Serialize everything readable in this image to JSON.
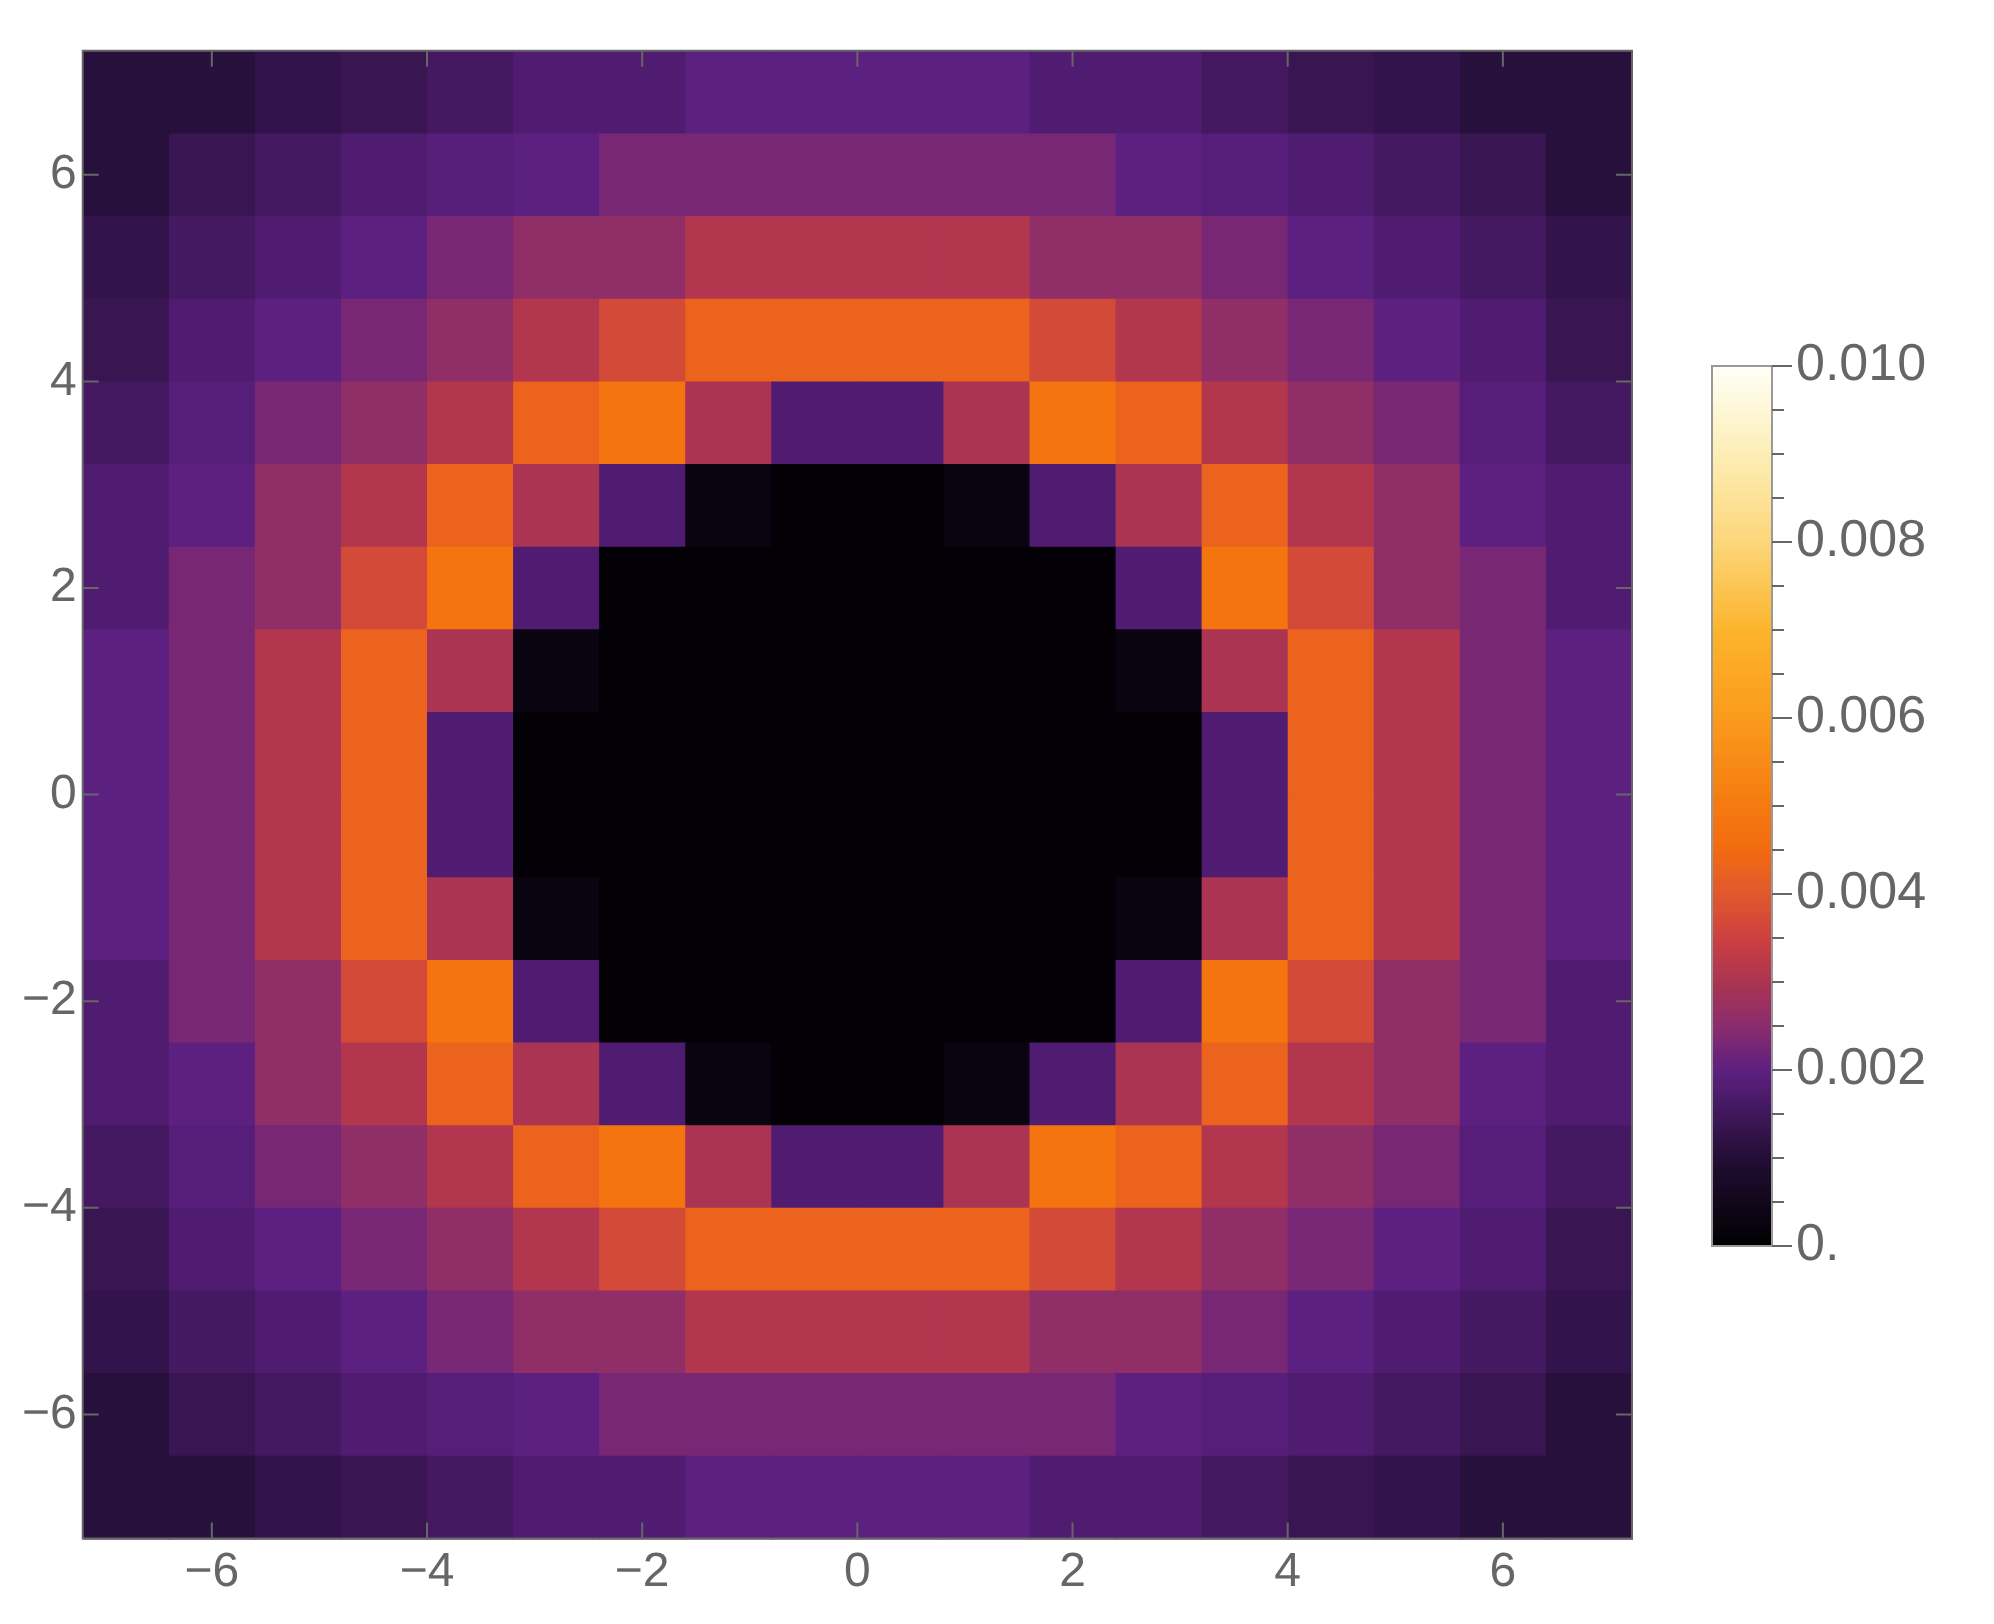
{
  "chart_data": {
    "type": "heatmap",
    "x": [
      -6.8,
      -6.0,
      -5.2,
      -4.4,
      -3.6,
      -2.8,
      -2.0,
      -1.2,
      -0.4,
      0.4,
      1.2,
      2.0,
      2.8,
      3.6,
      4.4,
      5.2,
      6.0,
      6.8
    ],
    "y": [
      6.8,
      6.0,
      5.2,
      4.4,
      3.6,
      2.8,
      2.0,
      1.2,
      0.4,
      -0.4,
      -1.2,
      -2.0,
      -2.8,
      -3.6,
      -4.4,
      -5.2,
      -6.0,
      -6.8
    ],
    "xlim": [
      -7.2,
      7.2
    ],
    "ylim": [
      -7.2,
      7.2
    ],
    "xticks": [
      -6,
      -4,
      -2,
      0,
      2,
      4,
      6
    ],
    "yticks": [
      -6,
      -4,
      -2,
      0,
      2,
      4,
      6
    ],
    "clim": [
      0,
      0.01
    ],
    "cticks": [
      {
        "value": 0,
        "label": "0."
      },
      {
        "value": 0.0005,
        "label": null
      },
      {
        "value": 0.001,
        "label": null
      },
      {
        "value": 0.0015,
        "label": null
      },
      {
        "value": 0.002,
        "label": "0.002"
      },
      {
        "value": 0.0025,
        "label": null
      },
      {
        "value": 0.003,
        "label": null
      },
      {
        "value": 0.0035,
        "label": null
      },
      {
        "value": 0.004,
        "label": "0.004"
      },
      {
        "value": 0.0045,
        "label": null
      },
      {
        "value": 0.005,
        "label": null
      },
      {
        "value": 0.0055,
        "label": null
      },
      {
        "value": 0.006,
        "label": "0.006"
      },
      {
        "value": 0.0065,
        "label": null
      },
      {
        "value": 0.007,
        "label": null
      },
      {
        "value": 0.0075,
        "label": null
      },
      {
        "value": 0.008,
        "label": "0.008"
      },
      {
        "value": 0.0085,
        "label": null
      },
      {
        "value": 0.009,
        "label": null
      },
      {
        "value": 0.0095,
        "label": null
      },
      {
        "value": 0.01,
        "label": "0.010"
      }
    ],
    "cells": [
      [
        0.0011,
        0.0011,
        0.0013,
        0.0014,
        0.0016,
        0.0018,
        0.0018,
        0.002,
        0.002,
        0.002,
        0.002,
        0.0018,
        0.0018,
        0.0016,
        0.0014,
        0.0013,
        0.0011,
        0.0011
      ],
      [
        0.0011,
        0.0014,
        0.0016,
        0.0018,
        0.0019,
        0.002,
        0.0023,
        0.0023,
        0.0023,
        0.0023,
        0.0023,
        0.0023,
        0.002,
        0.0019,
        0.0018,
        0.0016,
        0.0014,
        0.0011
      ],
      [
        0.0013,
        0.0016,
        0.0018,
        0.002,
        0.0023,
        0.0026,
        0.0026,
        0.0031,
        0.0031,
        0.0031,
        0.0031,
        0.0026,
        0.0026,
        0.0023,
        0.002,
        0.0018,
        0.0016,
        0.0013
      ],
      [
        0.0014,
        0.0018,
        0.002,
        0.0023,
        0.0026,
        0.0031,
        0.0037,
        0.0043,
        0.0043,
        0.0043,
        0.0043,
        0.0037,
        0.0031,
        0.0026,
        0.0023,
        0.002,
        0.0018,
        0.0014
      ],
      [
        0.0016,
        0.0019,
        0.0023,
        0.0026,
        0.0031,
        0.0043,
        0.0048,
        0.003,
        0.0018,
        0.0018,
        0.003,
        0.0048,
        0.0043,
        0.0031,
        0.0026,
        0.0023,
        0.0019,
        0.0016
      ],
      [
        0.0018,
        0.002,
        0.0026,
        0.0031,
        0.0043,
        0.003,
        0.0018,
        0.0003,
        0.0001,
        0.0001,
        0.0003,
        0.0018,
        0.003,
        0.0043,
        0.0031,
        0.0026,
        0.002,
        0.0018
      ],
      [
        0.0018,
        0.0023,
        0.0026,
        0.0037,
        0.0048,
        0.0018,
        0.0001,
        0.0001,
        0.0001,
        0.0001,
        0.0001,
        0.0001,
        0.0018,
        0.0048,
        0.0037,
        0.0026,
        0.0023,
        0.0018
      ],
      [
        0.002,
        0.0023,
        0.0031,
        0.0043,
        0.003,
        0.0003,
        0.0001,
        0.0001,
        0.0001,
        0.0001,
        0.0001,
        0.0001,
        0.0003,
        0.003,
        0.0043,
        0.0031,
        0.0023,
        0.002
      ],
      [
        0.002,
        0.0023,
        0.0031,
        0.0043,
        0.0018,
        0.0001,
        0.0001,
        0.0001,
        0.0001,
        0.0001,
        0.0001,
        0.0001,
        0.0001,
        0.0018,
        0.0043,
        0.0031,
        0.0023,
        0.002
      ],
      [
        0.002,
        0.0023,
        0.0031,
        0.0043,
        0.0018,
        0.0001,
        0.0001,
        0.0001,
        0.0001,
        0.0001,
        0.0001,
        0.0001,
        0.0001,
        0.0018,
        0.0043,
        0.0031,
        0.0023,
        0.002
      ],
      [
        0.002,
        0.0023,
        0.0031,
        0.0043,
        0.003,
        0.0003,
        0.0001,
        0.0001,
        0.0001,
        0.0001,
        0.0001,
        0.0001,
        0.0003,
        0.003,
        0.0043,
        0.0031,
        0.0023,
        0.002
      ],
      [
        0.0018,
        0.0023,
        0.0026,
        0.0037,
        0.0048,
        0.0018,
        0.0001,
        0.0001,
        0.0001,
        0.0001,
        0.0001,
        0.0001,
        0.0018,
        0.0048,
        0.0037,
        0.0026,
        0.0023,
        0.0018
      ],
      [
        0.0018,
        0.002,
        0.0026,
        0.0031,
        0.0043,
        0.003,
        0.0018,
        0.0003,
        0.0001,
        0.0001,
        0.0003,
        0.0018,
        0.003,
        0.0043,
        0.0031,
        0.0026,
        0.002,
        0.0018
      ],
      [
        0.0016,
        0.0019,
        0.0023,
        0.0026,
        0.0031,
        0.0043,
        0.0048,
        0.003,
        0.0018,
        0.0018,
        0.003,
        0.0048,
        0.0043,
        0.0031,
        0.0026,
        0.0023,
        0.0019,
        0.0016
      ],
      [
        0.0014,
        0.0018,
        0.002,
        0.0023,
        0.0026,
        0.0031,
        0.0037,
        0.0043,
        0.0043,
        0.0043,
        0.0043,
        0.0037,
        0.0031,
        0.0026,
        0.0023,
        0.002,
        0.0018,
        0.0014
      ],
      [
        0.0013,
        0.0016,
        0.0018,
        0.002,
        0.0023,
        0.0026,
        0.0026,
        0.0031,
        0.0031,
        0.0031,
        0.0031,
        0.0026,
        0.0026,
        0.0023,
        0.002,
        0.0018,
        0.0016,
        0.0013
      ],
      [
        0.0011,
        0.0014,
        0.0016,
        0.0018,
        0.0019,
        0.002,
        0.0023,
        0.0023,
        0.0023,
        0.0023,
        0.0023,
        0.0023,
        0.002,
        0.0019,
        0.0018,
        0.0016,
        0.0014,
        0.0011
      ],
      [
        0.0011,
        0.0011,
        0.0013,
        0.0014,
        0.0016,
        0.0018,
        0.0018,
        0.002,
        0.002,
        0.002,
        0.002,
        0.0018,
        0.0018,
        0.0016,
        0.0014,
        0.0013,
        0.0011,
        0.0011
      ]
    ]
  }
}
